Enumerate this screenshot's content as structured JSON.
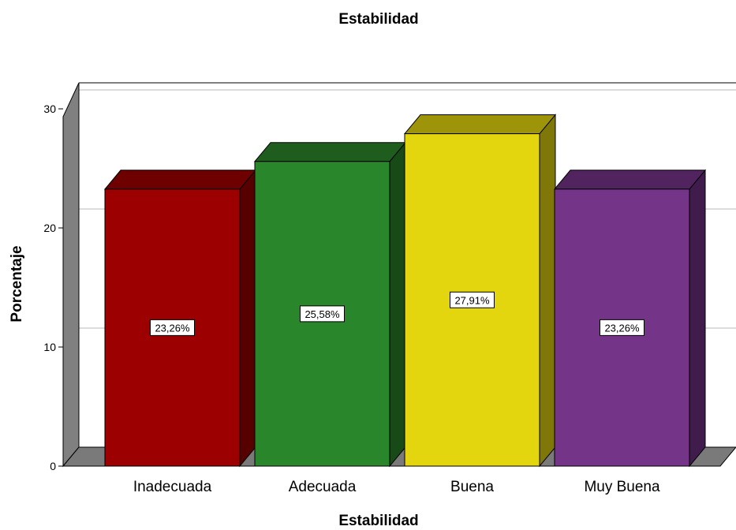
{
  "chart_data": {
    "type": "bar",
    "title": "Estabilidad",
    "xlabel": "Estabilidad",
    "ylabel": "Porcentaje",
    "categories": [
      "Inadecuada",
      "Adecuada",
      "Buena",
      "Muy Buena"
    ],
    "values": [
      23.26,
      25.58,
      27.91,
      23.26
    ],
    "data_labels": [
      "23,26%",
      "25,58%",
      "27,91%",
      "23,26%"
    ],
    "ylim": [
      0,
      30
    ],
    "yticks": [
      0,
      10,
      20,
      30
    ],
    "ytick_labels": [
      "0",
      "10",
      "20",
      "30"
    ],
    "grid": true,
    "style": "3d",
    "colors": {
      "bar_fronts": [
        "#9c0000",
        "#2a862a",
        "#e3d50e",
        "#743589"
      ],
      "bar_tops": [
        "#6e0000",
        "#1e5d1e",
        "#9e9409",
        "#512460"
      ],
      "bar_sides": [
        "#560000",
        "#174a17",
        "#7f7707",
        "#401c4c"
      ],
      "floor": "#7a7a7a",
      "wall": "#808080",
      "gridline": "#d0d0d0"
    }
  }
}
